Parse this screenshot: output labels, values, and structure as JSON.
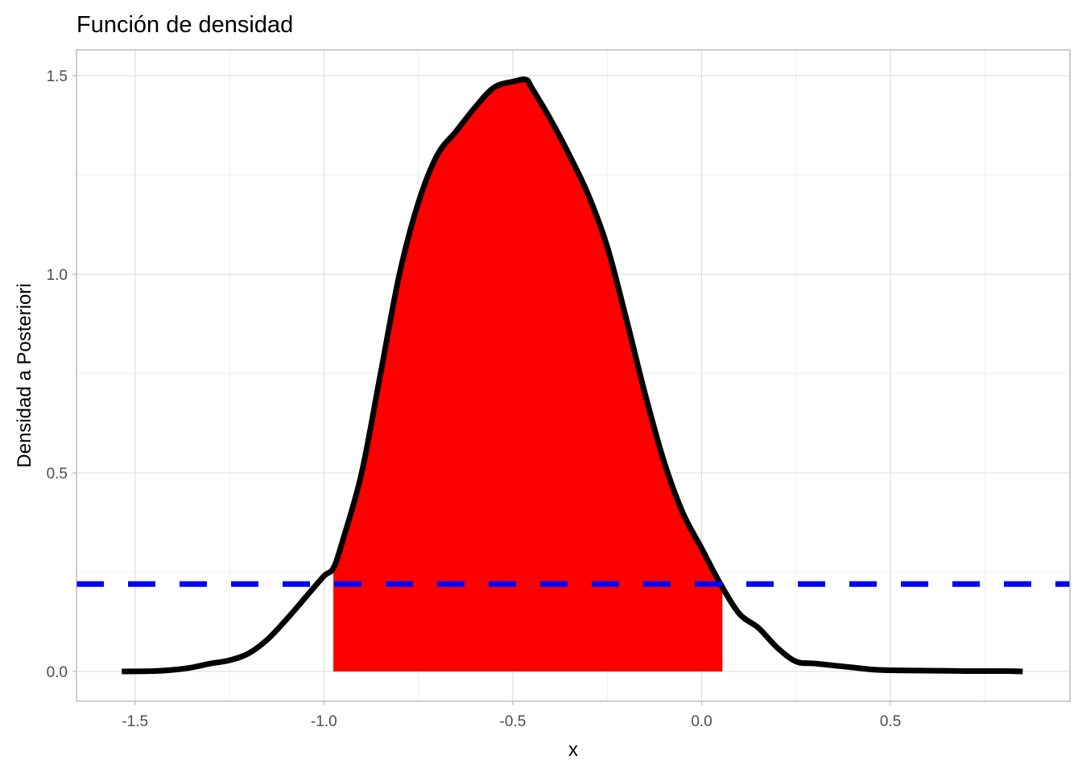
{
  "chart_data": {
    "type": "area",
    "title": "Función de densidad",
    "xlabel": "x",
    "ylabel": "Densidad a Posteriori",
    "xlim": [
      -1.655,
      0.975
    ],
    "ylim": [
      -0.075,
      1.565
    ],
    "x_ticks": [
      -1.5,
      -1.0,
      -0.5,
      0.0,
      0.5
    ],
    "x_tick_labels": [
      "-1.5",
      "-1.0",
      "-0.5",
      "0.0",
      "0.5"
    ],
    "y_ticks": [
      0.0,
      0.5,
      1.0,
      1.5
    ],
    "y_tick_labels": [
      "0.0",
      "0.5",
      "1.0",
      "1.5"
    ],
    "grid": true,
    "series": [
      {
        "role": "density",
        "color": "#000000",
        "x": [
          -1.535,
          -1.45,
          -1.4,
          -1.35,
          -1.3,
          -1.25,
          -1.2,
          -1.15,
          -1.1,
          -1.05,
          -1.0,
          -0.975,
          -0.95,
          -0.9,
          -0.85,
          -0.8,
          -0.75,
          -0.7,
          -0.65,
          -0.6,
          -0.55,
          -0.5,
          -0.465,
          -0.45,
          -0.4,
          -0.35,
          -0.3,
          -0.25,
          -0.2,
          -0.15,
          -0.1,
          -0.05,
          0.0,
          0.05,
          0.1,
          0.15,
          0.2,
          0.25,
          0.3,
          0.35,
          0.4,
          0.45,
          0.5,
          0.6,
          0.7,
          0.8,
          0.85
        ],
        "y": [
          0.0,
          0.001,
          0.004,
          0.01,
          0.02,
          0.028,
          0.045,
          0.08,
          0.13,
          0.185,
          0.24,
          0.26,
          0.33,
          0.5,
          0.75,
          1.0,
          1.18,
          1.3,
          1.36,
          1.42,
          1.47,
          1.485,
          1.49,
          1.47,
          1.39,
          1.3,
          1.2,
          1.07,
          0.89,
          0.7,
          0.53,
          0.4,
          0.31,
          0.22,
          0.145,
          0.11,
          0.06,
          0.025,
          0.02,
          0.015,
          0.01,
          0.005,
          0.003,
          0.002,
          0.001,
          0.001,
          0.0
        ]
      }
    ],
    "interval": {
      "color": "#ff0000",
      "x_start": -0.975,
      "x_end": 0.055,
      "base_height": 0.22
    },
    "threshold": {
      "color": "#0000ff",
      "style": "dashed",
      "y": 0.22
    }
  }
}
